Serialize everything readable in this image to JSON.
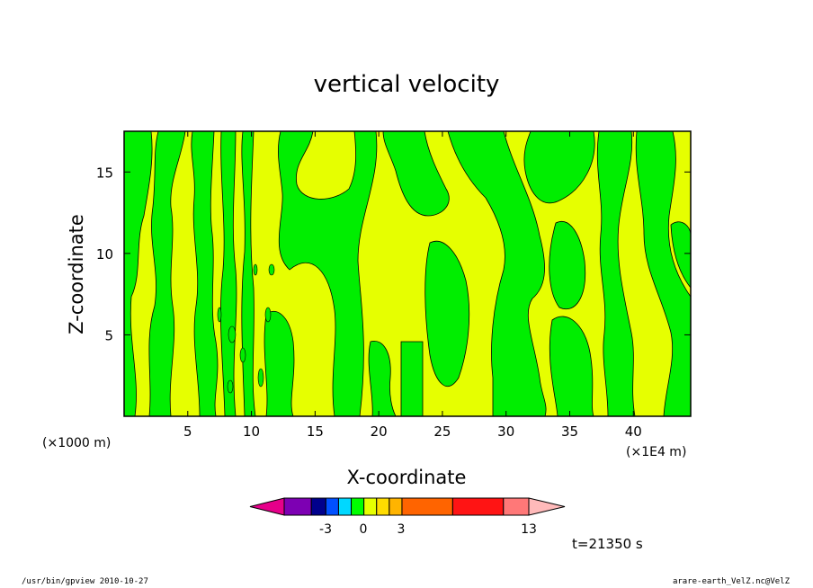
{
  "chart_data": {
    "type": "heatmap",
    "title": "vertical velocity",
    "xlabel": "X-coordinate",
    "ylabel": "Z-coordinate",
    "x_unit_left": "(×1000 m)",
    "x_unit_right": "(×1E4 m)",
    "xlim": [
      0,
      44.5
    ],
    "ylim": [
      0,
      17.5
    ],
    "x_ticks": [
      5,
      10,
      15,
      20,
      25,
      30,
      35,
      40
    ],
    "y_ticks": [
      5,
      10,
      15
    ],
    "time_label": "t=21350 s",
    "colorbar": {
      "colors": [
        "#e6008a",
        "#7d00b3",
        "#00008c",
        "#0050ff",
        "#00d8ff",
        "#00ff00",
        "#e6ff00",
        "#ffdc00",
        "#ffb400",
        "#ff6400",
        "#ff1414",
        "#ff7878",
        "#ffbaba"
      ],
      "tick_labels": [
        "-3",
        "0",
        "3",
        "13"
      ]
    },
    "regions_note": "",
    "colors": {
      "positive": "#e6ff00",
      "negative": "#00ee00",
      "frame": "#000000"
    }
  },
  "footer": {
    "program": "/usr/bin/gpview   2010-10-27",
    "source": "arare-earth_VelZ.nc@VelZ"
  }
}
